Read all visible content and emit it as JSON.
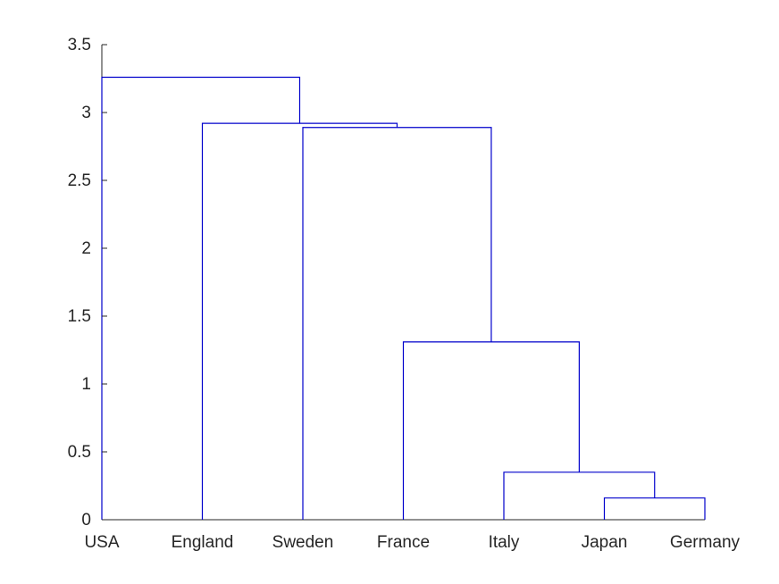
{
  "chart_data": {
    "type": "dendrogram",
    "title": "",
    "xlabel": "",
    "ylabel": "",
    "ylim": [
      0,
      3.5
    ],
    "yticks": [
      0,
      0.5,
      1,
      1.5,
      2,
      2.5,
      3,
      3.5
    ],
    "ytick_labels": [
      "0",
      "0.5",
      "1",
      "1.5",
      "2",
      "2.5",
      "3",
      "3.5"
    ],
    "leaves": [
      "USA",
      "England",
      "Sweden",
      "France",
      "Italy",
      "Japan",
      "Germany"
    ],
    "grid": false,
    "link_color": "#0000cc",
    "merges": [
      {
        "left": 5,
        "right": 6,
        "height": 0.16
      },
      {
        "left": 4,
        "right": 5.5,
        "height": 0.35
      },
      {
        "left": 3,
        "right": 4.75,
        "height": 1.31
      },
      {
        "left": 2,
        "right": 3.875,
        "height": 2.89
      },
      {
        "left": 1,
        "right": 2.9375,
        "height": 2.92
      },
      {
        "left": 0,
        "right": 1.96875,
        "height": 3.26
      }
    ]
  }
}
